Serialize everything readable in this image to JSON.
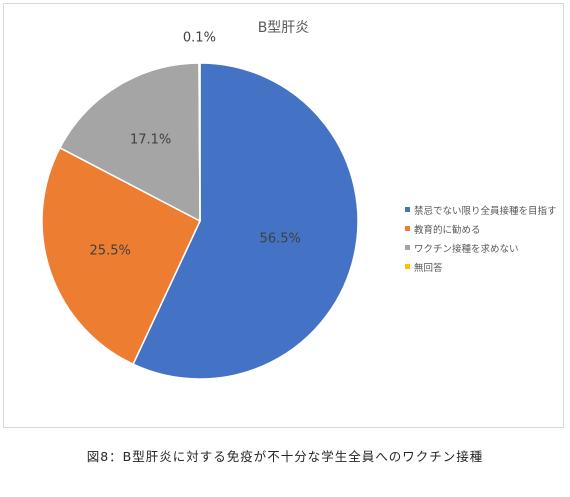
{
  "caption": "図8：B型肝炎に対する免疫が不十分な学生全員へのワクチン接種",
  "chart_data": {
    "type": "pie",
    "title": "B型肝炎",
    "legend_position": "right",
    "slices": [
      {
        "label": "禁忌でない限り全員接種を目指す",
        "value": 56.5,
        "value_label": "56.5%",
        "color": "#4472c4"
      },
      {
        "label": "教育的に勧める",
        "value": 25.5,
        "value_label": "25.5%",
        "color": "#ed7d31"
      },
      {
        "label": "ワクチン接種を求めない",
        "value": 17.1,
        "value_label": "17.1%",
        "color": "#a5a5a5"
      },
      {
        "label": "無回答",
        "value": 0.1,
        "value_label": "0.1%",
        "color": "#ffc000"
      }
    ]
  }
}
